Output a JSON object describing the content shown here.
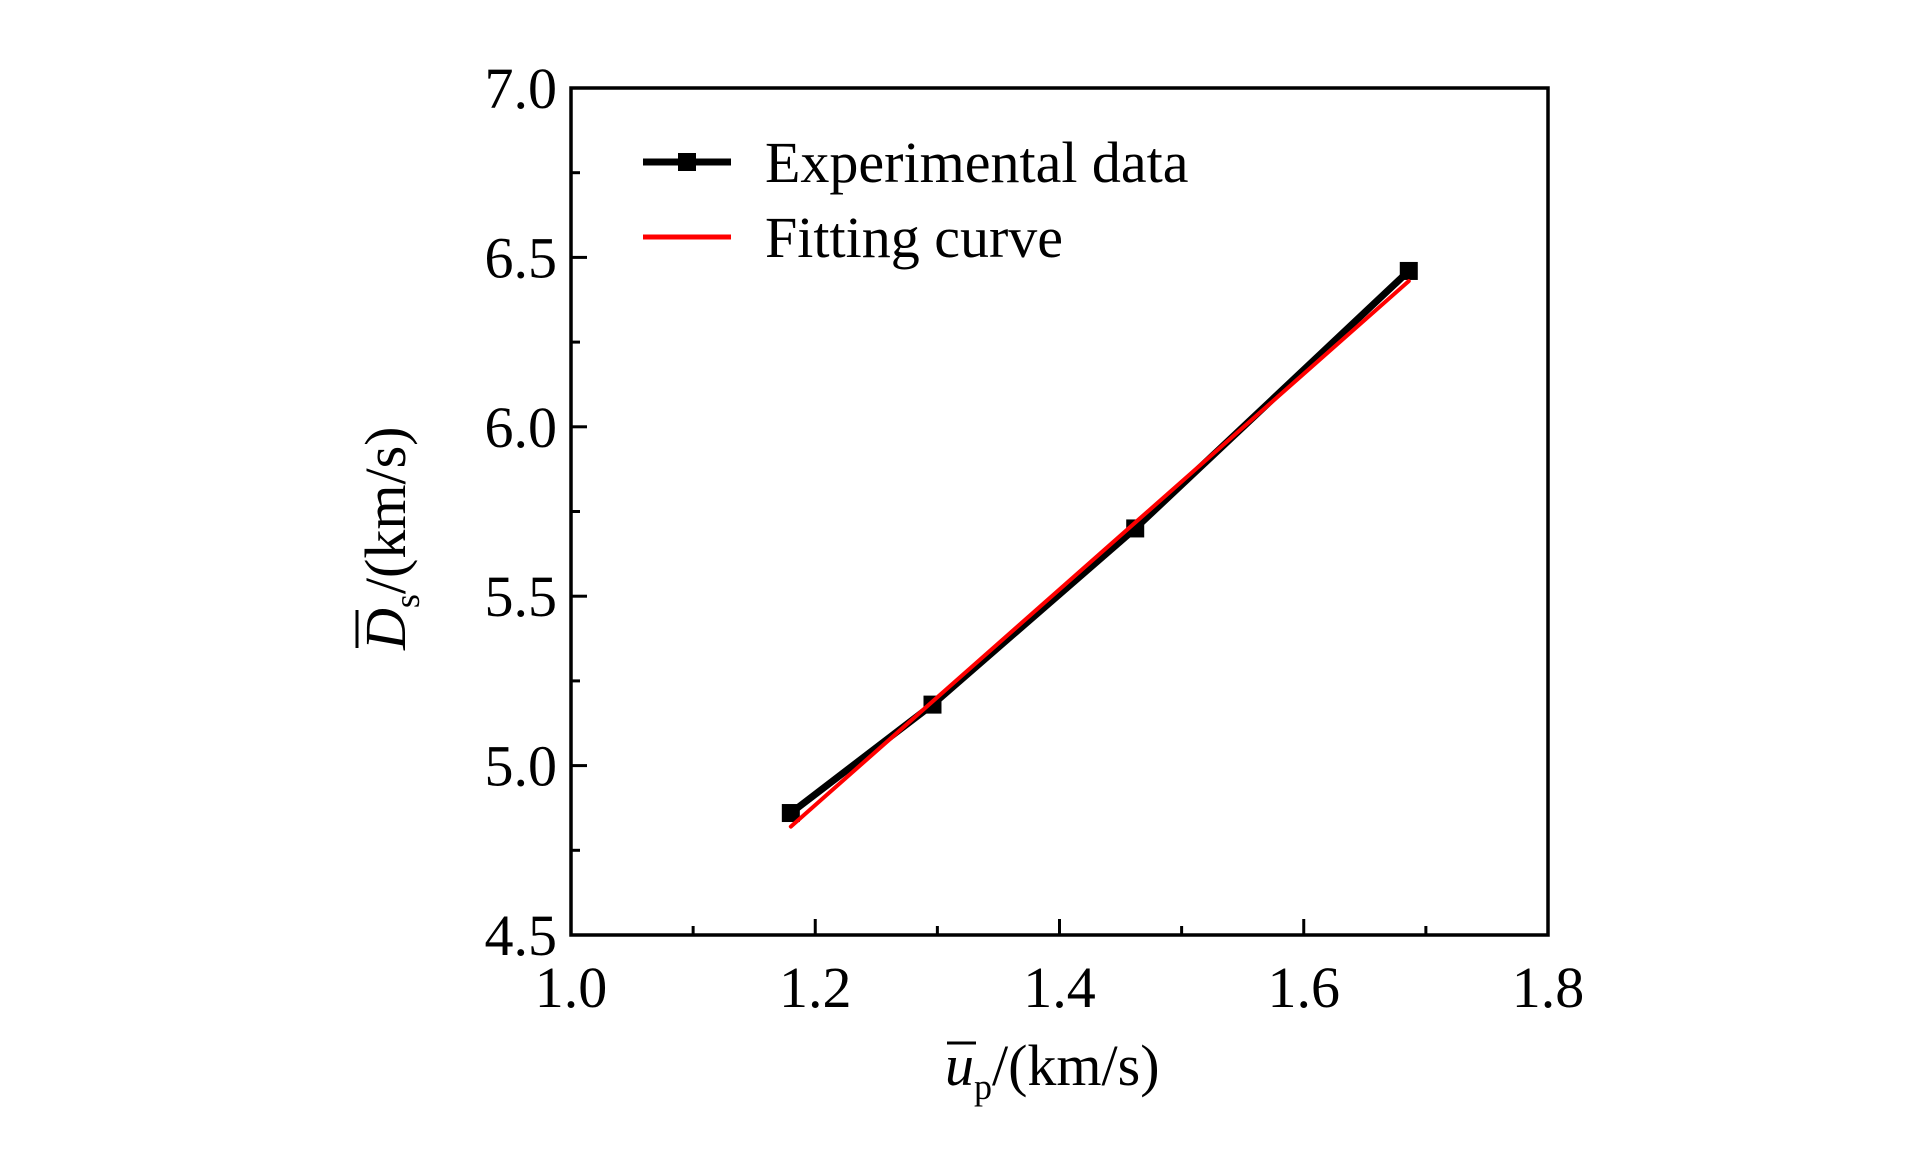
{
  "chart_data": {
    "type": "line",
    "title": "",
    "xlabel": {
      "base": "u",
      "subscript": "p",
      "suffix": "/(km/s)",
      "overline": true
    },
    "ylabel": {
      "base": "D",
      "subscript": "s",
      "suffix": "/(km/s)",
      "overline": true
    },
    "xlim": [
      1.0,
      1.8
    ],
    "ylim": [
      4.5,
      7.0
    ],
    "x_ticks": [
      "1.0",
      "1.2",
      "1.4",
      "1.6",
      "1.8"
    ],
    "y_ticks": [
      "4.5",
      "5.0",
      "5.5",
      "6.0",
      "6.5",
      "7.0"
    ],
    "grid": false,
    "legend_position": "top-left",
    "series": [
      {
        "name": "Experimental data",
        "style": "line-with-square-markers",
        "color": "#000000",
        "points": [
          {
            "x": 1.18,
            "y": 4.86
          },
          {
            "x": 1.296,
            "y": 5.18
          },
          {
            "x": 1.462,
            "y": 5.7
          },
          {
            "x": 1.686,
            "y": 6.46
          }
        ]
      },
      {
        "name": "Fitting curve",
        "style": "line",
        "color": "#ff0000",
        "points": [
          {
            "x": 1.18,
            "y": 4.82
          },
          {
            "x": 1.686,
            "y": 6.43
          }
        ]
      }
    ]
  }
}
